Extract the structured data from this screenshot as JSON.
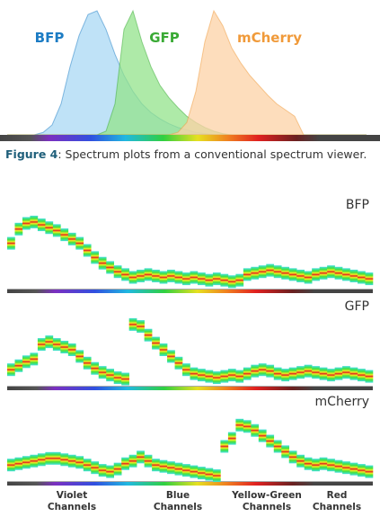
{
  "chart_data": [
    {
      "type": "area",
      "series": [
        {
          "name": "BFP",
          "color": "#1c7cc4",
          "fill": "#a9d8f4",
          "values": [
            0,
            0,
            0,
            0,
            2,
            8,
            25,
            55,
            80,
            97,
            100,
            85,
            65,
            48,
            35,
            25,
            18,
            13,
            9,
            6,
            4,
            2,
            1,
            0,
            0,
            0,
            0,
            0,
            0,
            0,
            0,
            0,
            0,
            0,
            0,
            0,
            0,
            0,
            0,
            0,
            0
          ]
        },
        {
          "name": "GFP",
          "color": "#3aaa35",
          "fill": "#93e38b",
          "values": [
            0,
            0,
            0,
            0,
            0,
            0,
            0,
            0,
            0,
            0,
            0,
            3,
            25,
            85,
            100,
            75,
            55,
            40,
            30,
            22,
            15,
            10,
            6,
            3,
            1,
            0,
            0,
            0,
            0,
            0,
            0,
            0,
            0,
            0,
            0,
            0,
            0,
            0,
            0,
            0,
            0
          ]
        },
        {
          "name": "mCherry",
          "color": "#f09a3a",
          "fill": "#fcd1a6",
          "values": [
            0,
            0,
            0,
            0,
            0,
            0,
            0,
            0,
            0,
            0,
            0,
            0,
            0,
            0,
            0,
            0,
            0,
            0,
            0,
            2,
            10,
            35,
            75,
            100,
            88,
            70,
            58,
            48,
            40,
            32,
            25,
            20,
            15,
            0,
            0,
            0,
            0,
            0,
            0,
            0,
            0
          ]
        }
      ]
    },
    {
      "type": "signature",
      "title": "BFP",
      "values": [
        60,
        80,
        88,
        90,
        86,
        82,
        78,
        72,
        66,
        60,
        50,
        40,
        32,
        26,
        20,
        16,
        12,
        14,
        16,
        14,
        12,
        14,
        12,
        10,
        12,
        10,
        8,
        10,
        8,
        6,
        8,
        16,
        18,
        20,
        22,
        20,
        18,
        16,
        14,
        12,
        16,
        18,
        20,
        18,
        16,
        14,
        12,
        10
      ]
    },
    {
      "type": "signature",
      "title": "GFP",
      "values": [
        20,
        26,
        32,
        36,
        58,
        62,
        58,
        54,
        50,
        40,
        30,
        22,
        16,
        12,
        8,
        6,
        88,
        85,
        72,
        60,
        50,
        40,
        30,
        20,
        14,
        12,
        10,
        8,
        10,
        12,
        10,
        14,
        18,
        20,
        18,
        14,
        12,
        14,
        16,
        18,
        16,
        14,
        12,
        14,
        16,
        14,
        12,
        10
      ]
    },
    {
      "type": "signature",
      "title": "mCherry",
      "values": [
        20,
        22,
        24,
        26,
        28,
        30,
        30,
        28,
        26,
        24,
        20,
        16,
        12,
        10,
        14,
        22,
        26,
        32,
        26,
        20,
        18,
        16,
        14,
        12,
        10,
        8,
        6,
        4,
        48,
        60,
        80,
        78,
        72,
        64,
        56,
        48,
        40,
        32,
        26,
        22,
        20,
        22,
        20,
        18,
        16,
        14,
        12,
        10
      ]
    }
  ],
  "caption": {
    "label": "Figure 4",
    "text": ": Spectrum plots from a conventional spectrum viewer."
  },
  "channel_groups": [
    [
      "Violet",
      "Channels"
    ],
    [
      "Blue",
      "Channels"
    ],
    [
      "Yellow-Green",
      "Channels"
    ],
    [
      "Red",
      "Channels"
    ]
  ]
}
